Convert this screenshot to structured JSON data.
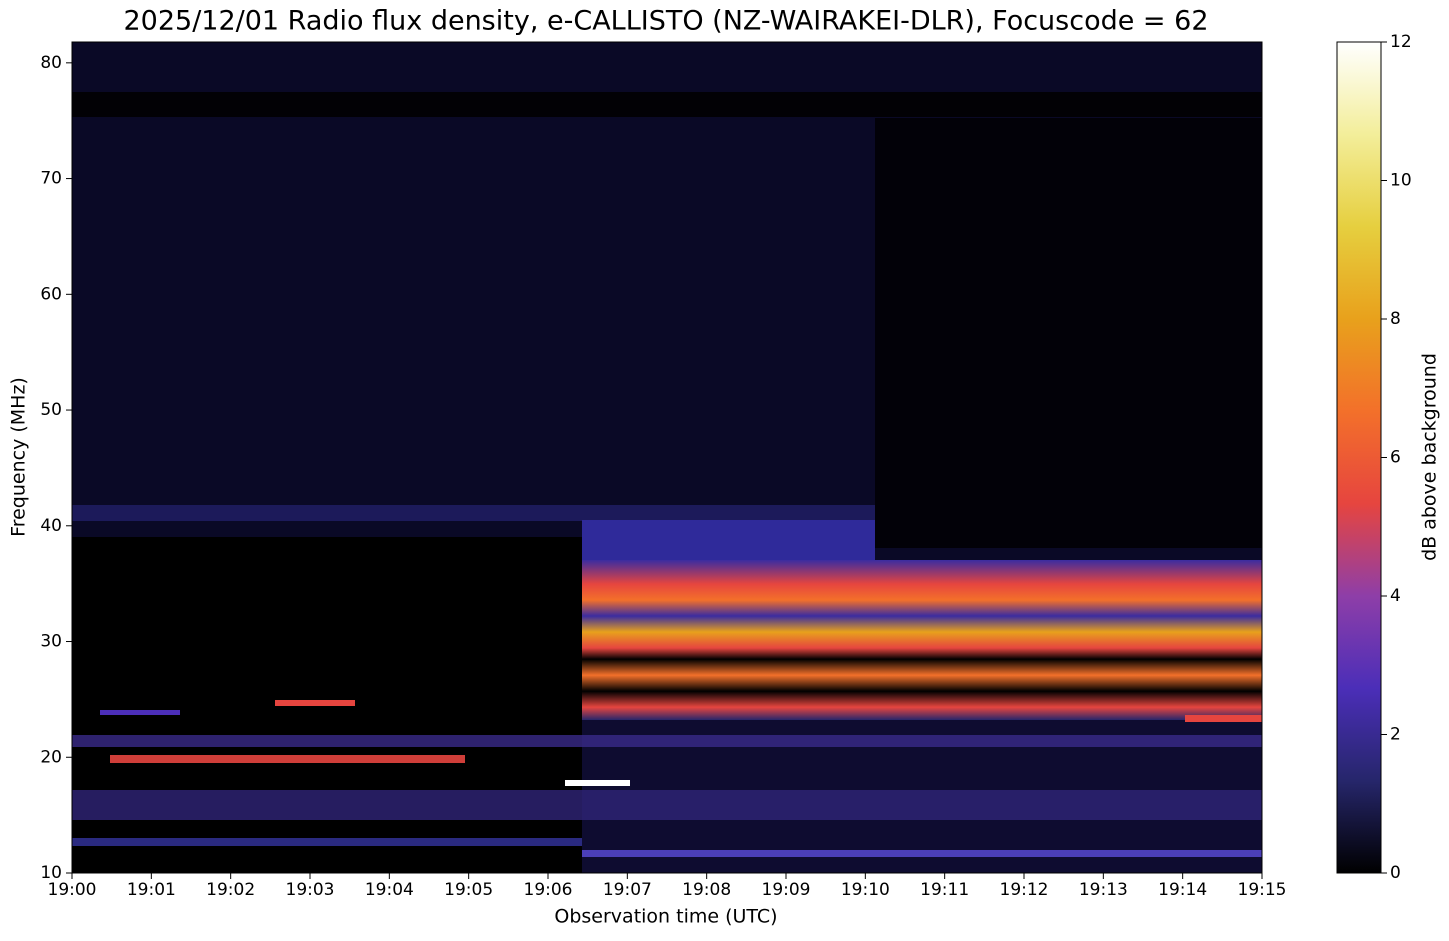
{
  "chart_data": {
    "type": "heatmap",
    "title": "2025/12/01 Radio flux density, e-CALLISTO (NZ-WAIRAKEI-DLR), Focuscode = 62",
    "x_label": "Observation time (UTC)",
    "y_label": "Frequency (MHz)",
    "xlim": [
      0,
      15
    ],
    "xticks": [
      {
        "value": 0,
        "label": "19:00"
      },
      {
        "value": 1,
        "label": "19:01"
      },
      {
        "value": 2,
        "label": "19:02"
      },
      {
        "value": 3,
        "label": "19:03"
      },
      {
        "value": 4,
        "label": "19:04"
      },
      {
        "value": 5,
        "label": "19:05"
      },
      {
        "value": 6,
        "label": "19:06"
      },
      {
        "value": 7,
        "label": "19:07"
      },
      {
        "value": 8,
        "label": "19:08"
      },
      {
        "value": 9,
        "label": "19:09"
      },
      {
        "value": 10,
        "label": "19:10"
      },
      {
        "value": 11,
        "label": "19:11"
      },
      {
        "value": 12,
        "label": "19:12"
      },
      {
        "value": 13,
        "label": "19:13"
      },
      {
        "value": 14,
        "label": "19:14"
      },
      {
        "value": 15,
        "label": "19:15"
      }
    ],
    "ylim": [
      10,
      81.8
    ],
    "yticks": [
      10,
      20,
      30,
      40,
      50,
      60,
      70,
      80
    ],
    "colorbar": {
      "label": "dB above background",
      "lim": [
        0,
        12
      ],
      "ticks": [
        0,
        2,
        4,
        6,
        8,
        10,
        12
      ],
      "colormap": [
        "#000000",
        "#26266b",
        "#4b2eb8",
        "#8e3ea8",
        "#e6453f",
        "#f3702a",
        "#e8a11c",
        "#e6cf3f",
        "#f3ee9a",
        "#ffffff"
      ]
    }
  }
}
